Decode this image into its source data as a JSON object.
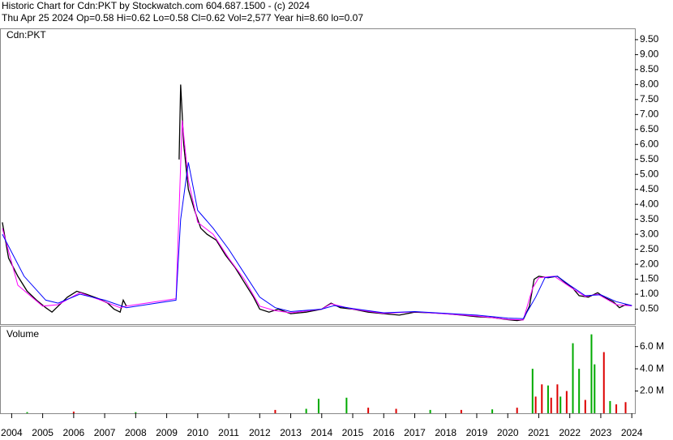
{
  "chart_data": [
    {
      "type": "line",
      "title": "Historic Chart for Cdn:PKT by Stockwatch.com 604.687.1500 - (c) 2024",
      "subtitle": "Thu Apr 25 2024   Op=0.58   Hi=0.62   Lo=0.58   Cl=0.62   Vol=2,577   Year hi=8.60   lo=0.07",
      "panel_label": "Cdn:PKT",
      "xlim": [
        2003.65,
        2024.1
      ],
      "xticks": [
        2004,
        2005,
        2006,
        2007,
        2008,
        2009,
        2010,
        2011,
        2012,
        2013,
        2014,
        2015,
        2016,
        2017,
        2018,
        2019,
        2020,
        2021,
        2022,
        2023,
        2024
      ],
      "ylim": [
        0,
        9.85
      ],
      "yticks": [
        {
          "value": 0.5,
          "label": "0.50"
        },
        {
          "value": 1,
          "label": "1.00"
        },
        {
          "value": 1.5,
          "label": "1.50"
        },
        {
          "value": 2,
          "label": "2.00"
        },
        {
          "value": 2.5,
          "label": "2.50"
        },
        {
          "value": 3,
          "label": "3.00"
        },
        {
          "value": 3.5,
          "label": "3.50"
        },
        {
          "value": 4,
          "label": "4.00"
        },
        {
          "value": 4.5,
          "label": "4.50"
        },
        {
          "value": 5,
          "label": "5.00"
        },
        {
          "value": 5.5,
          "label": "5.50"
        },
        {
          "value": 6,
          "label": "6.00"
        },
        {
          "value": 6.5,
          "label": "6.50"
        },
        {
          "value": 7,
          "label": "7.00"
        },
        {
          "value": 7.5,
          "label": "7.50"
        },
        {
          "value": 8,
          "label": "8.00"
        },
        {
          "value": 8.5,
          "label": "8.50"
        },
        {
          "value": 9,
          "label": "9.00"
        },
        {
          "value": 9.5,
          "label": "9.50"
        }
      ],
      "series": [
        {
          "color": "#000000",
          "x": [
            2003.7,
            2003.9,
            2004.2,
            2004.5,
            2004.8,
            2005.1,
            2005.3,
            2005.5,
            2005.8,
            2006.1,
            2006.4,
            2006.8,
            2007.1,
            2007.3,
            2007.5,
            2007.6,
            2007.7,
            2009.3,
            2009.4,
            2009.45,
            2009.55,
            2009.7,
            2009.9,
            2010.1,
            2010.3,
            2010.6,
            2010.9,
            2011.2,
            2011.5,
            2011.8,
            2012.0,
            2012.3,
            2012.6,
            2013.0,
            2013.5,
            2014.0,
            2014.3,
            2014.6,
            2015.0,
            2015.5,
            2016.0,
            2016.5,
            2017.0,
            2017.5,
            2018.0,
            2018.5,
            2019.0,
            2019.5,
            2020.0,
            2020.3,
            2020.5,
            2020.7,
            2020.85,
            2021.0,
            2021.3,
            2021.6,
            2021.9,
            2022.1,
            2022.3,
            2022.6,
            2022.9,
            2023.1,
            2023.4,
            2023.6,
            2023.8,
            2024.0
          ],
          "values": [
            3.4,
            2.2,
            1.6,
            1.1,
            0.8,
            0.55,
            0.4,
            0.6,
            0.9,
            1.1,
            1.0,
            0.85,
            0.7,
            0.5,
            0.4,
            0.8,
            0.6,
            null,
            5.5,
            8.0,
            6.0,
            4.5,
            3.8,
            3.2,
            3.0,
            2.8,
            2.3,
            1.9,
            1.4,
            0.9,
            0.5,
            0.4,
            0.5,
            0.35,
            0.4,
            0.5,
            0.7,
            0.55,
            0.5,
            0.4,
            0.35,
            0.3,
            0.4,
            0.38,
            0.35,
            0.3,
            0.25,
            0.22,
            0.15,
            0.12,
            0.15,
            0.6,
            1.5,
            1.6,
            1.55,
            1.6,
            1.35,
            1.2,
            0.95,
            0.9,
            1.05,
            0.9,
            0.75,
            0.55,
            0.65,
            0.62
          ]
        },
        {
          "color": "#ff00ff",
          "x": [
            2003.7,
            2004.2,
            2005.0,
            2005.5,
            2006.2,
            2007.0,
            2007.5,
            2007.7,
            2009.3,
            2009.5,
            2009.7,
            2010.0,
            2010.5,
            2011.0,
            2011.5,
            2012.0,
            2012.5,
            2013.0,
            2014.0,
            2014.3,
            2015.0,
            2016.0,
            2017.0,
            2018.0,
            2019.0,
            2020.0,
            2020.5,
            2020.8,
            2021.0,
            2021.5,
            2022.0,
            2022.5,
            2022.9,
            2023.5,
            2024.0
          ],
          "values": [
            3.2,
            1.3,
            0.6,
            0.65,
            1.05,
            0.75,
            0.55,
            0.6,
            0.85,
            6.8,
            4.8,
            3.4,
            3.0,
            2.2,
            1.5,
            0.6,
            0.45,
            0.38,
            0.5,
            0.68,
            0.5,
            0.36,
            0.41,
            0.34,
            0.27,
            0.16,
            0.14,
            1.2,
            1.55,
            1.6,
            1.25,
            0.92,
            1.0,
            0.65,
            0.61
          ]
        },
        {
          "color": "#0000ff",
          "x": [
            2003.7,
            2004.4,
            2005.1,
            2005.5,
            2006.2,
            2007.0,
            2007.7,
            2009.3,
            2009.45,
            2009.7,
            2010.0,
            2010.5,
            2011.0,
            2011.5,
            2012.0,
            2012.5,
            2013.0,
            2014.0,
            2014.4,
            2015.0,
            2016.0,
            2017.0,
            2018.0,
            2019.0,
            2020.0,
            2020.5,
            2020.9,
            2021.2,
            2021.6,
            2022.0,
            2022.5,
            2023.0,
            2023.5,
            2024.0
          ],
          "values": [
            3.0,
            1.6,
            0.8,
            0.7,
            1.0,
            0.8,
            0.55,
            0.8,
            3.5,
            5.4,
            3.8,
            3.2,
            2.5,
            1.7,
            0.9,
            0.55,
            0.42,
            0.5,
            0.62,
            0.52,
            0.38,
            0.42,
            0.36,
            0.3,
            0.2,
            0.18,
            0.9,
            1.55,
            1.6,
            1.3,
            0.95,
            0.98,
            0.75,
            0.62
          ]
        }
      ]
    },
    {
      "type": "bar",
      "panel_label": "Volume",
      "xlim": [
        2003.65,
        2024.1
      ],
      "ylim": [
        0,
        7.8
      ],
      "yticks": [
        {
          "value": 2,
          "label": "2.0 M"
        },
        {
          "value": 4,
          "label": "4.0 M"
        },
        {
          "value": 6,
          "label": "6.0 M"
        }
      ],
      "x": [
        2004.5,
        2006.0,
        2008.0,
        2012.5,
        2013.5,
        2013.9,
        2014.8,
        2015.5,
        2016.4,
        2017.5,
        2018.5,
        2019.5,
        2020.3,
        2020.8,
        2020.9,
        2021.1,
        2021.3,
        2021.4,
        2021.6,
        2021.7,
        2021.9,
        2022.1,
        2022.3,
        2022.5,
        2022.7,
        2022.8,
        2023.1,
        2023.3,
        2023.5,
        2023.8
      ],
      "values": [
        0.1,
        0.15,
        0.1,
        0.3,
        0.4,
        1.3,
        1.4,
        0.5,
        0.4,
        0.3,
        0.3,
        0.35,
        0.5,
        4.0,
        1.5,
        2.6,
        2.5,
        1.4,
        2.6,
        1.5,
        2.0,
        6.3,
        4.0,
        1.2,
        7.1,
        4.4,
        5.5,
        1.1,
        0.8,
        1.0
      ],
      "colors": [
        "#00aa00",
        "#dd0000",
        "#00aa00",
        "#dd0000",
        "#00aa00",
        "#00aa00",
        "#00aa00",
        "#dd0000",
        "#dd0000",
        "#00aa00",
        "#dd0000",
        "#00aa00",
        "#dd0000",
        "#00aa00",
        "#dd0000",
        "#dd0000",
        "#00aa00",
        "#dd0000",
        "#dd0000",
        "#00aa00",
        "#dd0000",
        "#00aa00",
        "#00aa00",
        "#dd0000",
        "#00aa00",
        "#00aa00",
        "#dd0000",
        "#00aa00",
        "#dd0000",
        "#dd0000"
      ]
    }
  ]
}
